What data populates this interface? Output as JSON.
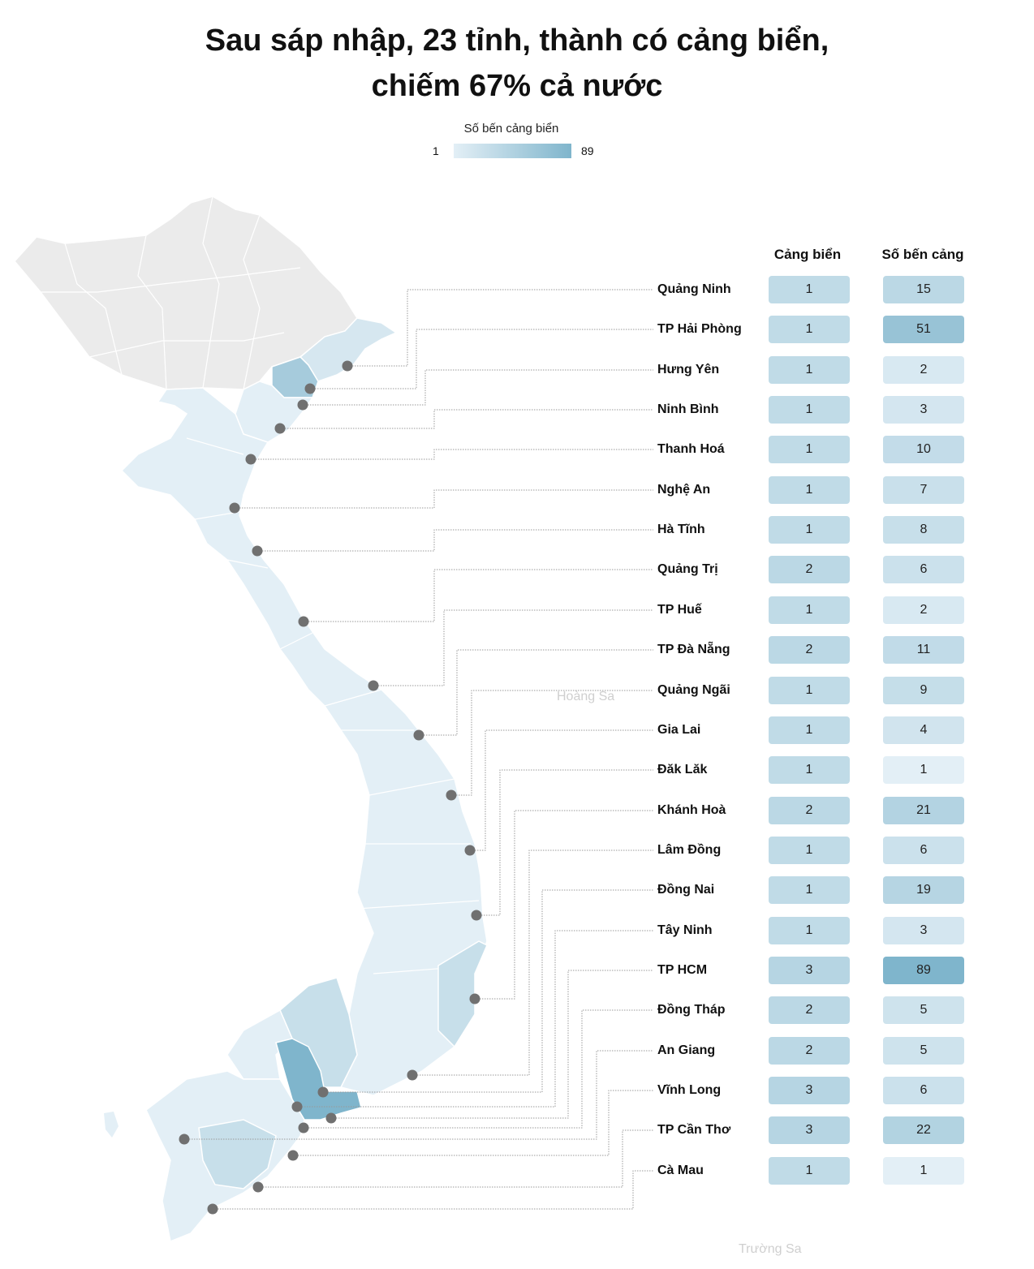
{
  "title_line1": "Sau sáp nhập, 23 tỉnh, thành có cảng biển,",
  "title_line2": "chiếm 67% cả nước",
  "legend": {
    "label": "Số bến cảng biển",
    "min": "1",
    "max": "89",
    "color_min": "#e3eff6",
    "color_max": "#7fb5cc"
  },
  "island_labels": {
    "hoang_sa": "Hoàng Sa",
    "truong_sa": "Trường Sa"
  },
  "colors": {
    "non_coastal": "#ebebeb",
    "border": "#ffffff",
    "marker": "#707070",
    "leader": "#999999"
  },
  "chart_data": {
    "type": "table",
    "columns": [
      "Cảng biển",
      "Số bến cảng"
    ],
    "rows": [
      {
        "province": "Quảng Ninh",
        "ports": 1,
        "berths": 15
      },
      {
        "province": "TP Hải Phòng",
        "ports": 1,
        "berths": 51
      },
      {
        "province": "Hưng Yên",
        "ports": 1,
        "berths": 2
      },
      {
        "province": "Ninh Bình",
        "ports": 1,
        "berths": 3
      },
      {
        "province": "Thanh Hoá",
        "ports": 1,
        "berths": 10
      },
      {
        "province": "Nghệ An",
        "ports": 1,
        "berths": 7
      },
      {
        "province": "Hà Tĩnh",
        "ports": 1,
        "berths": 8
      },
      {
        "province": "Quảng Trị",
        "ports": 2,
        "berths": 6
      },
      {
        "province": "TP Huế",
        "ports": 1,
        "berths": 2
      },
      {
        "province": "TP Đà Nẵng",
        "ports": 2,
        "berths": 11
      },
      {
        "province": "Quảng Ngãi",
        "ports": 1,
        "berths": 9
      },
      {
        "province": "Gia Lai",
        "ports": 1,
        "berths": 4
      },
      {
        "province": "Đăk Lăk",
        "ports": 1,
        "berths": 1
      },
      {
        "province": "Khánh Hoà",
        "ports": 2,
        "berths": 21
      },
      {
        "province": "Lâm Đồng",
        "ports": 1,
        "berths": 6
      },
      {
        "province": "Đồng Nai",
        "ports": 1,
        "berths": 19
      },
      {
        "province": "Tây Ninh",
        "ports": 1,
        "berths": 3
      },
      {
        "province": "TP HCM",
        "ports": 3,
        "berths": 89
      },
      {
        "province": "Đồng Tháp",
        "ports": 2,
        "berths": 5
      },
      {
        "province": "An Giang",
        "ports": 2,
        "berths": 5
      },
      {
        "province": "Vĩnh Long",
        "ports": 3,
        "berths": 6
      },
      {
        "province": "TP Cần Thơ",
        "ports": 3,
        "berths": 22
      },
      {
        "province": "Cà Mau",
        "ports": 1,
        "berths": 1
      }
    ]
  }
}
